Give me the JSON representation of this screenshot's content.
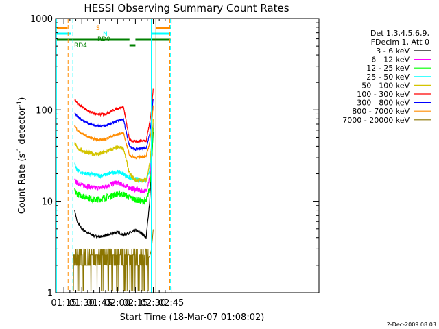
{
  "chart_data": {
    "type": "line",
    "title": "HESSI Observing Summary Count Rates",
    "xlabel": "Start Time (18-Mar-07 01:08:02)",
    "ylabel_main": "Count Rate (s",
    "ylabel_sup1": "-1",
    "ylabel_mid": " detector",
    "ylabel_sup2": "-1",
    "ylabel_end": ")",
    "timestamp": "2-Dec-2009 08:03",
    "yscale": "log",
    "ylim": [
      1,
      1000
    ],
    "xlim_minutes": [
      68,
      289
    ],
    "x_ticks": [
      {
        "label": "01:15",
        "m": 75
      },
      {
        "label": "01:30",
        "m": 90
      },
      {
        "label": "01:45",
        "m": 105
      },
      {
        "label": "02:00",
        "m": 120
      },
      {
        "label": "02:15",
        "m": 135
      },
      {
        "label": "02:30",
        "m": 150
      },
      {
        "label": "02:45",
        "m": 165
      }
    ],
    "y_ticks": [
      {
        "label": "1",
        "v": 1
      },
      {
        "label": "10",
        "v": 10
      },
      {
        "label": "100",
        "v": 100
      },
      {
        "label": "1000",
        "v": 1000
      }
    ],
    "legend": {
      "header": [
        "Det 1,3,4,5,6,9,",
        "FDecim 1, Att 0"
      ],
      "position": "right"
    },
    "series": [
      {
        "name": "3 - 6 keV",
        "color": "#000000",
        "x": [
          84,
          86,
          90,
          95,
          100,
          105,
          110,
          115,
          120,
          125,
          130,
          135,
          140,
          144,
          147,
          148.5,
          150
        ],
        "y": [
          8,
          6,
          5,
          4.5,
          4.2,
          4.1,
          4.2,
          4.4,
          4.6,
          4.3,
          4.5,
          4.8,
          4.5,
          4.0,
          10,
          25,
          60
        ]
      },
      {
        "name": "6 - 12 keV",
        "color": "#ff00ff",
        "x": [
          84,
          86,
          90,
          95,
          100,
          105,
          110,
          115,
          120,
          125,
          130,
          135,
          140,
          144,
          147,
          148.5,
          150
        ],
        "y": [
          17,
          16,
          15,
          14.5,
          14,
          14,
          14.5,
          15.5,
          16,
          15,
          14,
          13.5,
          13,
          13,
          18,
          30,
          70
        ]
      },
      {
        "name": "12 - 25 keV",
        "color": "#00ff00",
        "x": [
          84,
          86,
          90,
          95,
          100,
          105,
          110,
          115,
          120,
          125,
          130,
          135,
          140,
          144,
          147,
          148.5,
          150
        ],
        "y": [
          13,
          12,
          11.5,
          11,
          10.5,
          10.5,
          11,
          11.5,
          12,
          12,
          11,
          10.5,
          10,
          10,
          14,
          25,
          65
        ]
      },
      {
        "name": "25 - 50 keV",
        "color": "#00ffff",
        "x": [
          84,
          86,
          90,
          95,
          100,
          105,
          110,
          115,
          120,
          125,
          130,
          135,
          140,
          144,
          147,
          148.5,
          150
        ],
        "y": [
          25,
          22,
          20.5,
          20,
          19.5,
          19,
          19.5,
          20.5,
          21,
          20,
          18,
          17.5,
          17,
          17,
          22,
          35,
          80
        ]
      },
      {
        "name": "50 - 100 keV",
        "color": "#d4c400",
        "x": [
          84,
          86,
          90,
          95,
          100,
          105,
          110,
          115,
          120,
          125,
          130,
          135,
          140,
          144,
          147,
          148.5,
          150
        ],
        "y": [
          44,
          38,
          36,
          34,
          33,
          33,
          34.5,
          37,
          39,
          38,
          20,
          17,
          17,
          17,
          26,
          40,
          80
        ]
      },
      {
        "name": "100 - 300 keV",
        "color": "#ff0000",
        "x": [
          84,
          86,
          90,
          95,
          100,
          105,
          110,
          115,
          120,
          125,
          130,
          135,
          140,
          144,
          147,
          148.5,
          150
        ],
        "y": [
          130,
          118,
          108,
          98,
          92,
          89,
          90,
          97,
          104,
          108,
          47,
          45,
          46,
          46,
          73,
          100,
          175
        ]
      },
      {
        "name": "300 - 800 keV",
        "color": "#0000ff",
        "x": [
          84,
          86,
          90,
          95,
          100,
          105,
          110,
          115,
          120,
          125,
          130,
          135,
          140,
          144,
          147,
          148.5,
          150
        ],
        "y": [
          95,
          85,
          78,
          72,
          68,
          66,
          67,
          71,
          76,
          79,
          40,
          37,
          38,
          38,
          55,
          80,
          140
        ]
      },
      {
        "name": "800 - 7000 keV",
        "color": "#ff8c00",
        "x": [
          84,
          86,
          90,
          95,
          100,
          105,
          110,
          115,
          120,
          125,
          130,
          135,
          140,
          144,
          147,
          148.5,
          150
        ],
        "y": [
          68,
          60,
          55,
          51,
          48,
          47,
          48,
          51,
          54,
          56,
          32,
          30,
          31,
          31,
          44,
          65,
          115
        ]
      },
      {
        "name": "7000 - 20000 keV",
        "color": "#8b7500",
        "x": [
          83,
          86,
          90,
          95,
          100,
          105,
          110,
          115,
          120,
          125,
          130,
          135,
          140,
          144,
          147,
          148.5,
          150
        ],
        "y": [
          2.5,
          2.3,
          2.2,
          2.3,
          2.2,
          2.3,
          2.4,
          2.4,
          2.3,
          2.3,
          2.2,
          2.3,
          2.4,
          2.3,
          2.5,
          3,
          5
        ]
      }
    ],
    "flag_lines": [
      {
        "label": "S",
        "color": "#ff8c00",
        "segments": [
          [
            68,
            78
          ],
          [
            152,
            164.5
          ]
        ]
      },
      {
        "label": "N",
        "color": "#00ffff",
        "segments": [
          [
            68,
            81
          ],
          [
            148,
            164.5
          ]
        ]
      },
      {
        "label": "RD0",
        "color": "#008000",
        "segments": [
          [
            68,
            130
          ],
          [
            135,
            164.5
          ]
        ]
      },
      {
        "label": "RD4",
        "color": "#008000",
        "segments": [
          [
            130,
            135
          ]
        ]
      }
    ],
    "vertical_markers": [
      {
        "m": 68.8,
        "color": "#00ffff",
        "style": "solid"
      },
      {
        "m": 78.5,
        "color": "#ff8c00",
        "style": "dashed"
      },
      {
        "m": 82.5,
        "color": "#00ffff",
        "style": "dashed"
      },
      {
        "m": 148.3,
        "color": "#00ffff",
        "style": "solid"
      },
      {
        "m": 152.2,
        "color": "#8b7500",
        "style": "solid"
      },
      {
        "m": 163.8,
        "color": "#ff8c00",
        "style": "dashed"
      },
      {
        "m": 164.5,
        "color": "#00ffff",
        "style": "dashed"
      }
    ]
  }
}
